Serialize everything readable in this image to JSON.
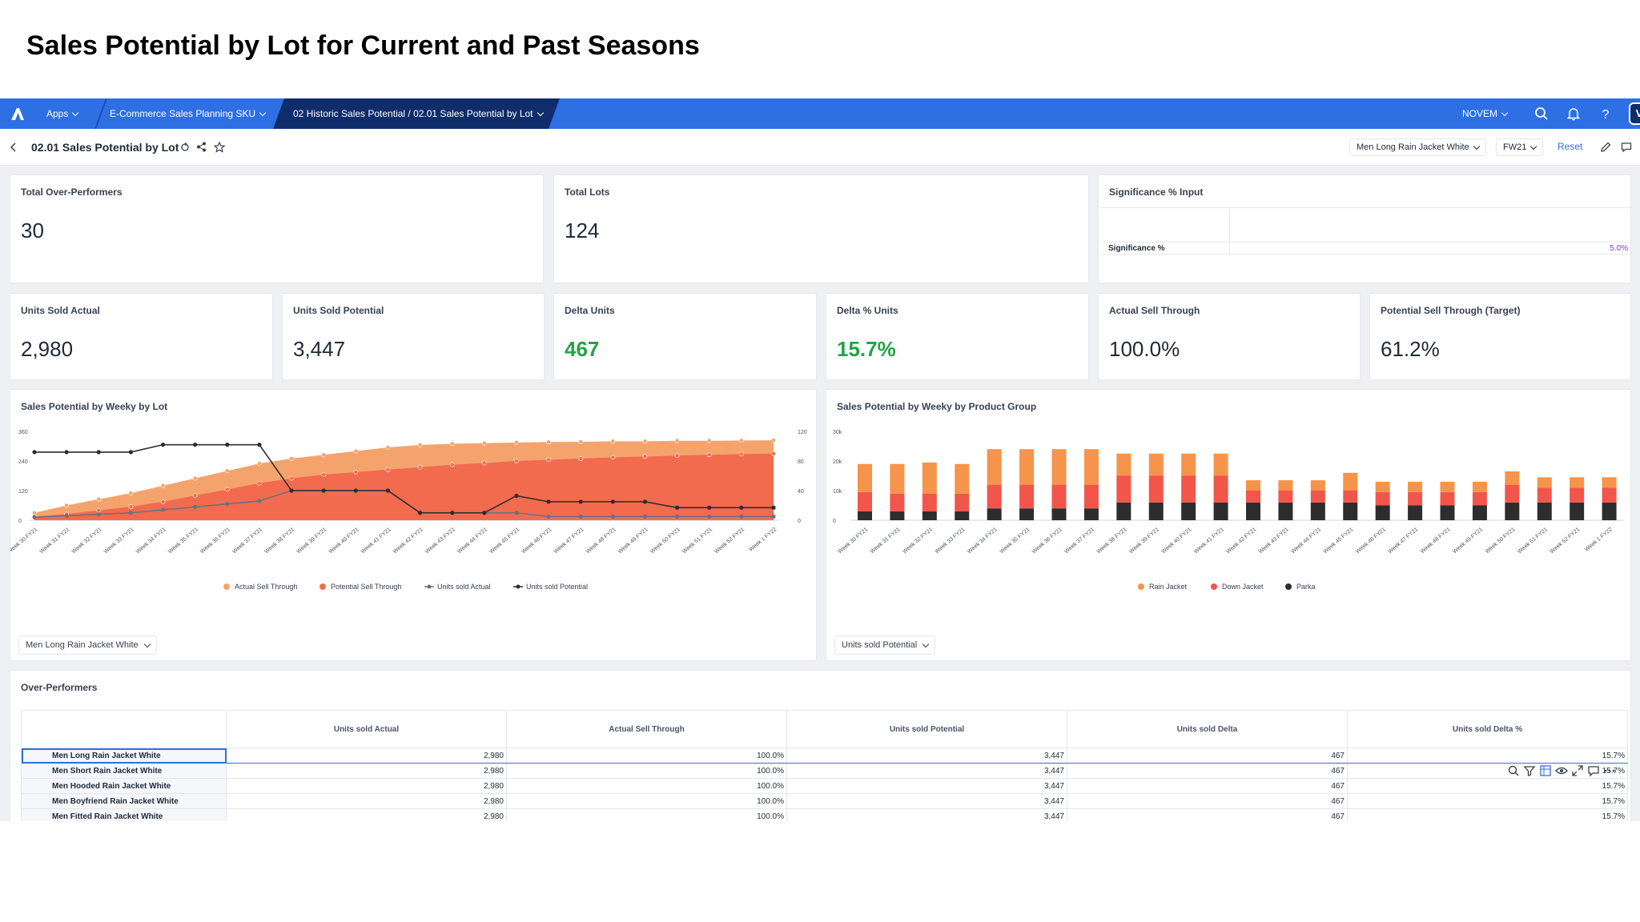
{
  "slide_title": "Sales Potential by Lot for Current and Past Seasons",
  "topbar": {
    "apps_label": "Apps",
    "model_label": "E-Commerce Sales Planning SKU",
    "path_label": "02 Historic Sales Potential / 02.01 Sales Potential by Lot",
    "user_menu_label": "NOVEM",
    "avatar_initial": "V",
    "bar_color": "#2f6fe4"
  },
  "subheader": {
    "title": "02.01 Sales Potential by Lot",
    "product_filter": "Men Long Rain Jacket White",
    "season_filter": "FW21",
    "reset_label": "Reset"
  },
  "kpis": {
    "total_over_performers": {
      "label": "Total Over-Performers",
      "value": "30"
    },
    "total_lots": {
      "label": "Total Lots",
      "value": "124"
    },
    "significance": {
      "label": "Significance % Input",
      "row_label": "Significance %",
      "value": "5.0%"
    },
    "units_sold_actual": {
      "label": "Units Sold Actual",
      "value": "2,980"
    },
    "units_sold_potential": {
      "label": "Units Sold Potential",
      "value": "3,447"
    },
    "delta_units": {
      "label": "Delta Units",
      "value": "467"
    },
    "delta_pct_units": {
      "label": "Delta % Units",
      "value": "15.7%"
    },
    "actual_sell_through": {
      "label": "Actual Sell Through",
      "value": "100.0%"
    },
    "potential_sell_through": {
      "label": "Potential Sell Through (Target)",
      "value": "61.2%"
    }
  },
  "weeks": [
    "Week 30 FY21",
    "Week 31 FY21",
    "Week 32 FY21",
    "Week 33 FY21",
    "Week 34 FY21",
    "Week 35 FY21",
    "Week 36 FY21",
    "Week 37 FY21",
    "Week 38 FY21",
    "Week 39 FY21",
    "Week 40 FY21",
    "Week 41 FY21",
    "Week 42 FY21",
    "Week 43 FY21",
    "Week 44 FY21",
    "Week 45 FY21",
    "Week 46 FY21",
    "Week 47 FY21",
    "Week 48 FY21",
    "Week 49 FY21",
    "Week 50 FY21",
    "Week 51 FY21",
    "Week 52 FY21",
    "Week 1 FY22"
  ],
  "chart_data": [
    {
      "type": "area",
      "title": "Sales Potential by Weeky by Lot",
      "y_left_ticks": [
        "360",
        "240",
        "120",
        "0"
      ],
      "y_right_ticks": [
        "120",
        "80",
        "40",
        "0"
      ],
      "ylim_left": [
        0,
        360
      ],
      "ylim_right": [
        0,
        120
      ],
      "series": [
        {
          "name": "Actual Sell Through",
          "kind": "area",
          "axis": "left",
          "color": "#f5a36c",
          "values": [
            30,
            60,
            85,
            110,
            140,
            170,
            200,
            230,
            250,
            265,
            280,
            295,
            305,
            310,
            312,
            315,
            317,
            318,
            320,
            320,
            322,
            322,
            323,
            324
          ]
        },
        {
          "name": "Potential Sell Through",
          "kind": "area",
          "axis": "left",
          "color": "#f26b4f",
          "values": [
            15,
            25,
            40,
            55,
            75,
            100,
            125,
            150,
            170,
            185,
            195,
            205,
            215,
            225,
            232,
            240,
            245,
            250,
            255,
            258,
            262,
            265,
            268,
            270
          ]
        },
        {
          "name": "Units sold Actual",
          "kind": "line",
          "axis": "right",
          "color": "#6b7280",
          "values": [
            4,
            6,
            8,
            10,
            14,
            18,
            22,
            26,
            40,
            40,
            40,
            40,
            10,
            10,
            10,
            10,
            5,
            5,
            5,
            5,
            5,
            5,
            5,
            5
          ]
        },
        {
          "name": "Units sold Potential",
          "kind": "line",
          "axis": "right",
          "color": "#2d2d2d",
          "values": [
            92,
            92,
            92,
            92,
            102,
            102,
            102,
            102,
            40,
            40,
            40,
            40,
            10,
            10,
            10,
            33,
            25,
            25,
            25,
            25,
            17,
            17,
            17,
            17
          ]
        }
      ],
      "legend_position": "bottom",
      "dropdown": "Men Long Rain Jacket White"
    },
    {
      "type": "bar",
      "title": "Sales Potential by Weeky by Product Group",
      "y_ticks": [
        "30k",
        "20k",
        "10k",
        "0"
      ],
      "ylim": [
        0,
        30000
      ],
      "stacked": true,
      "series": [
        {
          "name": "Parka",
          "color": "#2d2d2d",
          "values": [
            3000,
            3000,
            3000,
            3000,
            4000,
            4000,
            4000,
            4000,
            6000,
            6000,
            6000,
            6000,
            6000,
            6000,
            6000,
            6000,
            5000,
            5000,
            5000,
            5000,
            6000,
            6000,
            6000,
            6000
          ]
        },
        {
          "name": "Down Jacket",
          "color": "#f2554a",
          "values": [
            6500,
            6000,
            6000,
            6000,
            8000,
            8000,
            8000,
            8000,
            9000,
            9000,
            9000,
            9000,
            4000,
            4000,
            4000,
            4000,
            4500,
            4500,
            4500,
            4500,
            6000,
            5000,
            5000,
            5000
          ]
        },
        {
          "name": "Rain Jacket",
          "color": "#f5944a",
          "values": [
            9500,
            10000,
            10500,
            10000,
            12000,
            12000,
            12000,
            12000,
            7500,
            7500,
            7500,
            7500,
            3500,
            3500,
            3500,
            6000,
            3500,
            3500,
            3500,
            3500,
            4500,
            3500,
            3500,
            3500
          ]
        }
      ],
      "legend_order": [
        "Rain Jacket",
        "Down Jacket",
        "Parka"
      ],
      "legend_position": "bottom",
      "dropdown": "Units sold Potential"
    }
  ],
  "table": {
    "title": "Over-Performers",
    "columns": [
      "Units sold Actual",
      "Actual Sell Through",
      "Units sold Potential",
      "Units sold Delta",
      "Units sold Delta %"
    ],
    "rows": [
      {
        "name": "Men Long Rain Jacket White",
        "cells": [
          "2,980",
          "100.0%",
          "3,447",
          "467",
          "15.7%"
        ]
      },
      {
        "name": "Men Short Rain Jacket White",
        "cells": [
          "2,980",
          "100.0%",
          "3,447",
          "467",
          "15.7%"
        ]
      },
      {
        "name": "Men Hooded Rain Jacket White",
        "cells": [
          "2,980",
          "100.0%",
          "3,447",
          "467",
          "15.7%"
        ]
      },
      {
        "name": "Men Boyfriend Rain Jacket White",
        "cells": [
          "2,980",
          "100.0%",
          "3,447",
          "467",
          "15.7%"
        ]
      },
      {
        "name": "Men Fitted Rain Jacket White",
        "cells": [
          "2,980",
          "100.0%",
          "3,447",
          "467",
          "15.7%"
        ]
      }
    ]
  }
}
